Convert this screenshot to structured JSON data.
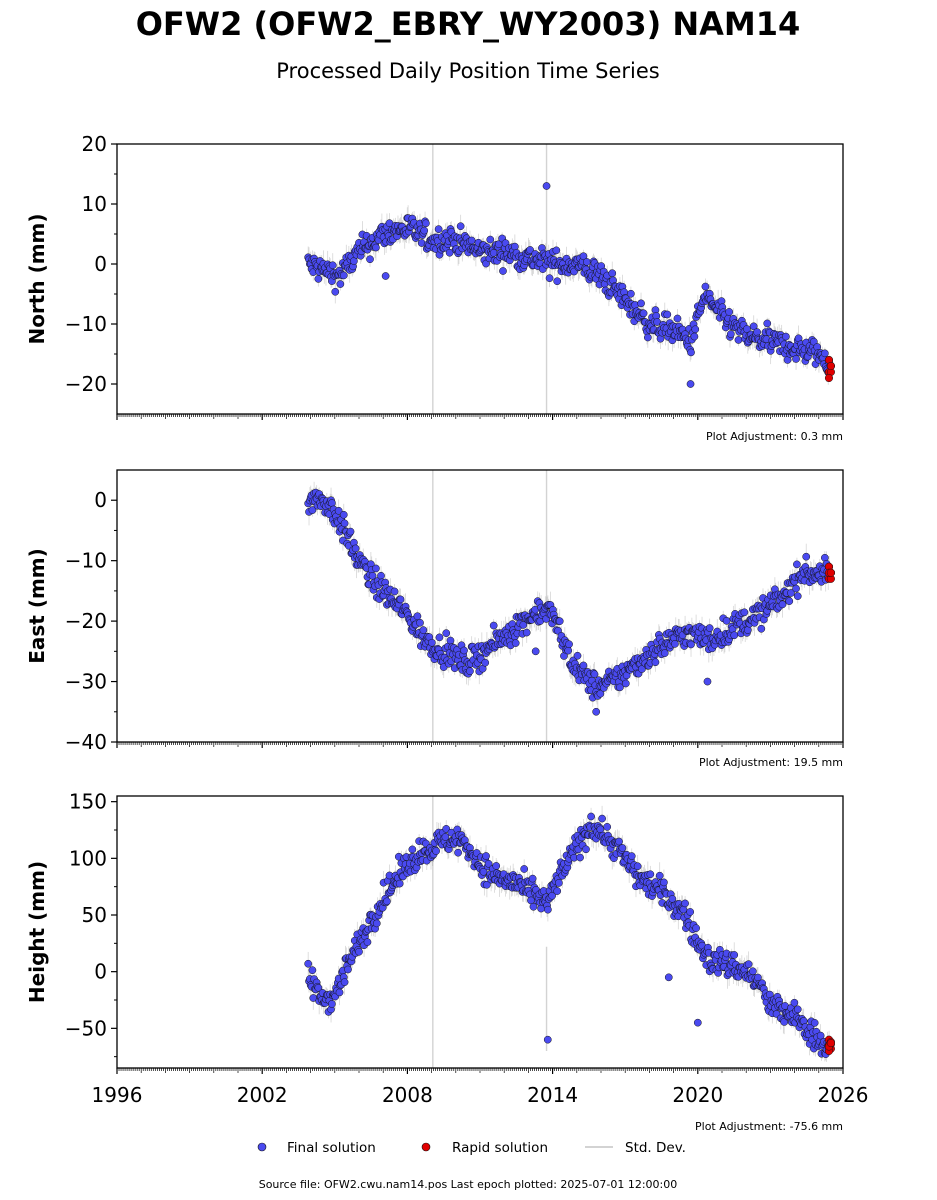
{
  "chart_data": {
    "type": "scatter",
    "title": "OFW2 (OFW2_EBRY_WY2003) NAM14",
    "subtitle": "Processed Daily Position Time Series",
    "x_tick_labels": [
      "1996",
      "2002",
      "2008",
      "2014",
      "2020",
      "2026"
    ],
    "xlim": [
      1996,
      2026
    ],
    "grid": false,
    "legend": {
      "placement": "bottom",
      "entries": [
        "Final solution",
        "Rapid solution",
        "Std. Dev."
      ]
    },
    "colors": {
      "final": "#4a4af0",
      "rapid": "#e00000",
      "std_dev": "#d3d3d3",
      "marker_edge": "#111111"
    },
    "footer": "Source file: OFW2.cwu.nam14.pos  Last epoch plotted: 2025-07-01 12:00:00",
    "panels": [
      {
        "ylabel": "North (mm)",
        "ylim": [
          -25,
          20
        ],
        "y_ticks": [
          20,
          10,
          0,
          -10,
          -20
        ],
        "y_tick_labels": [
          "20",
          "10",
          "0",
          "−10",
          "−20"
        ],
        "adjustment": "Plot Adjustment: 0.3 mm",
        "trend": [
          [
            2003.9,
            0
          ],
          [
            2004.5,
            -1
          ],
          [
            2005.2,
            -2
          ],
          [
            2006.0,
            2
          ],
          [
            2007.0,
            5
          ],
          [
            2008.0,
            6
          ],
          [
            2009.0,
            4
          ],
          [
            2010.0,
            4
          ],
          [
            2011.0,
            2
          ],
          [
            2012.0,
            2
          ],
          [
            2013.0,
            1
          ],
          [
            2014.0,
            0
          ],
          [
            2015.0,
            0
          ],
          [
            2016.0,
            -2
          ],
          [
            2017.0,
            -6
          ],
          [
            2018.0,
            -10
          ],
          [
            2019.0,
            -11
          ],
          [
            2019.7,
            -13
          ],
          [
            2020.3,
            -5
          ],
          [
            2021.0,
            -9
          ],
          [
            2022.0,
            -12
          ],
          [
            2023.0,
            -13
          ],
          [
            2024.0,
            -14
          ],
          [
            2025.0,
            -15
          ],
          [
            2025.5,
            -17
          ]
        ],
        "outliers": [
          [
            2013.75,
            13
          ],
          [
            2007.1,
            -2
          ],
          [
            2019.7,
            -20
          ]
        ],
        "rapid_values": [
          -16,
          -17,
          -18,
          -17,
          -16,
          -18,
          -19,
          -17
        ]
      },
      {
        "ylabel": "East (mm)",
        "ylim": [
          -40,
          5
        ],
        "y_ticks": [
          0,
          -10,
          -20,
          -30,
          -40
        ],
        "y_tick_labels": [
          "0",
          "−10",
          "−20",
          "−30",
          "−40"
        ],
        "adjustment": "Plot Adjustment: 19.5 mm",
        "trend": [
          [
            2003.9,
            0
          ],
          [
            2004.5,
            0
          ],
          [
            2005.0,
            -2
          ],
          [
            2005.5,
            -6
          ],
          [
            2006.0,
            -10
          ],
          [
            2006.5,
            -13
          ],
          [
            2007.0,
            -15
          ],
          [
            2008.0,
            -19
          ],
          [
            2008.7,
            -23
          ],
          [
            2009.5,
            -25
          ],
          [
            2010.5,
            -27
          ],
          [
            2011.5,
            -24
          ],
          [
            2012.5,
            -21
          ],
          [
            2013.5,
            -18
          ],
          [
            2014.0,
            -19
          ],
          [
            2014.5,
            -24
          ],
          [
            2015.0,
            -28
          ],
          [
            2015.8,
            -31
          ],
          [
            2016.5,
            -30
          ],
          [
            2017.5,
            -27
          ],
          [
            2018.5,
            -24
          ],
          [
            2019.5,
            -22
          ],
          [
            2020.5,
            -23
          ],
          [
            2021.5,
            -21
          ],
          [
            2022.5,
            -19
          ],
          [
            2023.5,
            -16
          ],
          [
            2024.3,
            -12
          ],
          [
            2025.5,
            -12
          ]
        ],
        "outliers": [
          [
            2013.3,
            -25
          ],
          [
            2015.8,
            -35
          ],
          [
            2020.4,
            -30
          ]
        ],
        "rapid_values": [
          -11,
          -12,
          -13,
          -12,
          -11,
          -13,
          -12,
          -12
        ]
      },
      {
        "ylabel": "Height (mm)",
        "ylim": [
          -85,
          155
        ],
        "y_ticks": [
          150,
          100,
          50,
          0,
          -50
        ],
        "y_tick_labels": [
          "150",
          "100",
          "50",
          "0",
          "−50"
        ],
        "adjustment": "Plot Adjustment: -75.6 mm",
        "trend": [
          [
            2003.9,
            -5
          ],
          [
            2004.5,
            -25
          ],
          [
            2005.0,
            -20
          ],
          [
            2005.5,
            5
          ],
          [
            2006.0,
            25
          ],
          [
            2006.5,
            45
          ],
          [
            2007.0,
            65
          ],
          [
            2007.5,
            80
          ],
          [
            2008.0,
            95
          ],
          [
            2008.5,
            105
          ],
          [
            2009.5,
            115
          ],
          [
            2010.0,
            118
          ],
          [
            2010.5,
            110
          ],
          [
            2011.0,
            95
          ],
          [
            2011.5,
            85
          ],
          [
            2012.5,
            78
          ],
          [
            2013.0,
            70
          ],
          [
            2013.8,
            60
          ],
          [
            2014.3,
            85
          ],
          [
            2015.0,
            110
          ],
          [
            2015.6,
            130
          ],
          [
            2016.2,
            120
          ],
          [
            2016.8,
            105
          ],
          [
            2017.5,
            85
          ],
          [
            2018.5,
            70
          ],
          [
            2019.5,
            50
          ],
          [
            2020.0,
            25
          ],
          [
            2020.5,
            10
          ],
          [
            2021.5,
            5
          ],
          [
            2022.0,
            0
          ],
          [
            2022.5,
            -10
          ],
          [
            2023.0,
            -30
          ],
          [
            2024.0,
            -40
          ],
          [
            2025.0,
            -60
          ],
          [
            2025.5,
            -70
          ]
        ],
        "outliers": [
          [
            2013.8,
            -60
          ],
          [
            2020.0,
            -45
          ],
          [
            2018.8,
            -5
          ]
        ],
        "rapid_values": [
          -60,
          -62,
          -65,
          -68,
          -70,
          -64,
          -66,
          -63
        ]
      }
    ]
  }
}
